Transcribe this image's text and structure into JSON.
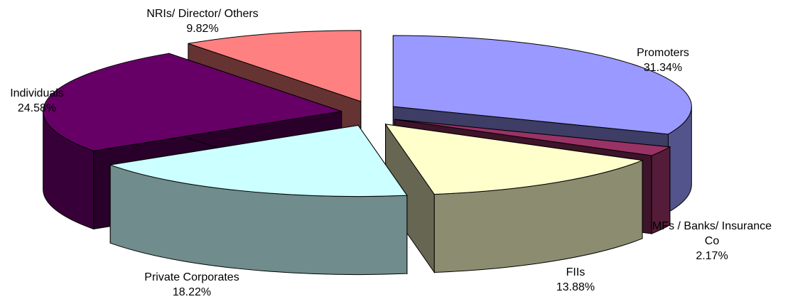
{
  "chart_data": {
    "type": "pie",
    "style": "3d-exploded",
    "slices": [
      {
        "label": "Promoters",
        "value": 31.34,
        "value_text": "31.34%",
        "color": "#9999FF"
      },
      {
        "label": "MFs / Banks/ Insurance Co",
        "value": 2.17,
        "value_text": "2.17%",
        "color": "#993366"
      },
      {
        "label": "FIIs",
        "value": 13.88,
        "value_text": "13.88%",
        "color": "#FFFFCC"
      },
      {
        "label": "Private Corporates",
        "value": 18.22,
        "value_text": "18.22%",
        "color": "#CCFFFF"
      },
      {
        "label": "Individuals",
        "value": 24.58,
        "value_text": "24.58%",
        "color": "#660066"
      },
      {
        "label": "NRIs/ Director/ Others",
        "value": 9.82,
        "value_text": "9.82%",
        "color": "#FF8080"
      }
    ]
  }
}
